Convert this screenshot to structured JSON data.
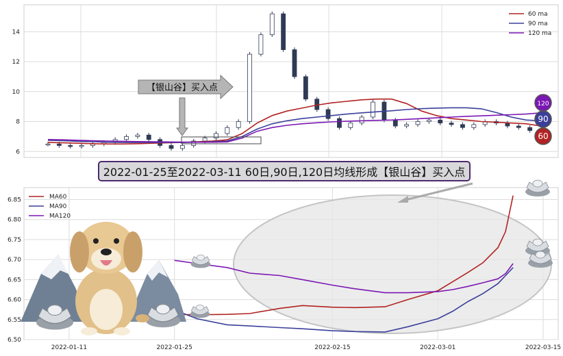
{
  "banner": "2022-01-25至2022-03-11 60日,90日,120日均线形成【银山谷】买入点",
  "arrow_label": "【银山谷】买入点",
  "colors": {
    "ma60": "#b22222",
    "ma90": "#3a3f99",
    "ma120": "#7b17b3",
    "grid": "#dcdcdc",
    "candle": "#2f3a55",
    "ellipse": "#e6e6e6"
  },
  "icons": [
    "silver-ingot-icon",
    "dog-mascot-icon",
    "mountain-icon"
  ],
  "chart_data": [
    {
      "type": "line",
      "subtype": "candlestick-with-moving-averages",
      "ylim": [
        5.6,
        15.8
      ],
      "yticks": [
        "6",
        "8",
        "10",
        "12",
        "14"
      ],
      "legend_placement": "top-right",
      "grid": true,
      "series": [
        {
          "name": "60 ma",
          "key": "ma60",
          "values": [
            6.6,
            6.58,
            6.55,
            6.52,
            6.5,
            6.5,
            6.52,
            6.55,
            6.58,
            6.6,
            6.65,
            6.7,
            6.78,
            7.2,
            7.9,
            8.4,
            8.7,
            8.9,
            9.1,
            9.25,
            9.35,
            9.45,
            9.5,
            9.5,
            9.2,
            8.7,
            8.4,
            8.2,
            8.1,
            8.0,
            7.95,
            7.9,
            7.85,
            7.7
          ]
        },
        {
          "name": "90 ma",
          "key": "ma90",
          "values": [
            6.75,
            6.72,
            6.68,
            6.65,
            6.62,
            6.6,
            6.6,
            6.6,
            6.6,
            6.6,
            6.62,
            6.65,
            6.7,
            7.0,
            7.5,
            7.85,
            8.05,
            8.2,
            8.3,
            8.4,
            8.5,
            8.58,
            8.65,
            8.72,
            8.8,
            8.86,
            8.9,
            8.92,
            8.92,
            8.85,
            8.6,
            8.3,
            8.1,
            8.05
          ]
        },
        {
          "name": "120 ma",
          "key": "ma120",
          "values": [
            6.8,
            6.78,
            6.75,
            6.72,
            6.7,
            6.68,
            6.66,
            6.65,
            6.64,
            6.63,
            6.62,
            6.62,
            6.64,
            6.9,
            7.35,
            7.6,
            7.75,
            7.85,
            7.92,
            7.98,
            8.02,
            8.05,
            8.08,
            8.1,
            8.15,
            8.2,
            8.25,
            8.3,
            8.35,
            8.38,
            8.42,
            8.46,
            8.5,
            8.58
          ]
        }
      ],
      "price": [
        6.5,
        6.4,
        6.35,
        6.4,
        6.5,
        6.6,
        6.8,
        7.0,
        7.1,
        6.8,
        6.4,
        6.2,
        6.4,
        6.7,
        6.9,
        7.2,
        7.6,
        8.0,
        12.5,
        13.8,
        15.2,
        12.8,
        11.0,
        9.5,
        8.8,
        8.2,
        7.6,
        7.9,
        8.3,
        9.3,
        8.1,
        7.7,
        7.8,
        8.0,
        8.1,
        7.9,
        7.8,
        7.6,
        7.8,
        8.0,
        7.9,
        7.7,
        7.6,
        7.4,
        7.3
      ],
      "badges": [
        "120",
        "90",
        "60"
      ]
    },
    {
      "type": "line",
      "x": [
        "2022-01-05",
        "2022-01-11",
        "2022-01-18",
        "2022-01-25",
        "2022-02-01",
        "2022-02-08",
        "2022-02-15",
        "2022-02-22",
        "2022-03-01",
        "2022-03-08",
        "2022-03-15"
      ],
      "xticks": [
        "2022-01-11",
        "2022-01-25",
        "2022-02-15",
        "2022-03-01",
        "2022-03-15"
      ],
      "ylim": [
        6.5,
        6.88
      ],
      "yticks": [
        "6.50",
        "6.55",
        "6.60",
        "6.65",
        "6.70",
        "6.75",
        "6.80",
        "6.85"
      ],
      "legend_placement": "top-left",
      "grid": true,
      "series": [
        {
          "name": "MA60",
          "key": "ma60",
          "points": [
            [
              "2022-01-25",
              6.563
            ],
            [
              "2022-01-28",
              6.562
            ],
            [
              "2022-02-01",
              6.563
            ],
            [
              "2022-02-04",
              6.565
            ],
            [
              "2022-02-08",
              6.578
            ],
            [
              "2022-02-11",
              6.585
            ],
            [
              "2022-02-15",
              6.581
            ],
            [
              "2022-02-18",
              6.58
            ],
            [
              "2022-02-22",
              6.582
            ],
            [
              "2022-02-25",
              6.6
            ],
            [
              "2022-03-01",
              6.622
            ],
            [
              "2022-03-03",
              6.645
            ],
            [
              "2022-03-05",
              6.668
            ],
            [
              "2022-03-07",
              6.692
            ],
            [
              "2022-03-09",
              6.73
            ],
            [
              "2022-03-10",
              6.77
            ],
            [
              "2022-03-11",
              6.86
            ]
          ]
        },
        {
          "name": "MA90",
          "key": "ma90",
          "points": [
            [
              "2022-01-25",
              6.574
            ],
            [
              "2022-01-28",
              6.552
            ],
            [
              "2022-02-01",
              6.537
            ],
            [
              "2022-02-04",
              6.534
            ],
            [
              "2022-02-08",
              6.53
            ],
            [
              "2022-02-11",
              6.527
            ],
            [
              "2022-02-15",
              6.522
            ],
            [
              "2022-02-18",
              6.52
            ],
            [
              "2022-02-22",
              6.519
            ],
            [
              "2022-02-25",
              6.532
            ],
            [
              "2022-03-01",
              6.552
            ],
            [
              "2022-03-03",
              6.571
            ],
            [
              "2022-03-05",
              6.595
            ],
            [
              "2022-03-07",
              6.615
            ],
            [
              "2022-03-09",
              6.64
            ],
            [
              "2022-03-10",
              6.66
            ],
            [
              "2022-03-11",
              6.68
            ]
          ]
        },
        {
          "name": "MA120",
          "key": "ma120",
          "points": [
            [
              "2022-01-25",
              6.698
            ],
            [
              "2022-01-28",
              6.69
            ],
            [
              "2022-02-01",
              6.68
            ],
            [
              "2022-02-04",
              6.666
            ],
            [
              "2022-02-08",
              6.66
            ],
            [
              "2022-02-11",
              6.65
            ],
            [
              "2022-02-15",
              6.636
            ],
            [
              "2022-02-18",
              6.627
            ],
            [
              "2022-02-22",
              6.617
            ],
            [
              "2022-02-25",
              6.617
            ],
            [
              "2022-03-01",
              6.62
            ],
            [
              "2022-03-03",
              6.625
            ],
            [
              "2022-03-05",
              6.633
            ],
            [
              "2022-03-07",
              6.642
            ],
            [
              "2022-03-09",
              6.652
            ],
            [
              "2022-03-10",
              6.665
            ],
            [
              "2022-03-11",
              6.69
            ]
          ]
        }
      ]
    }
  ]
}
